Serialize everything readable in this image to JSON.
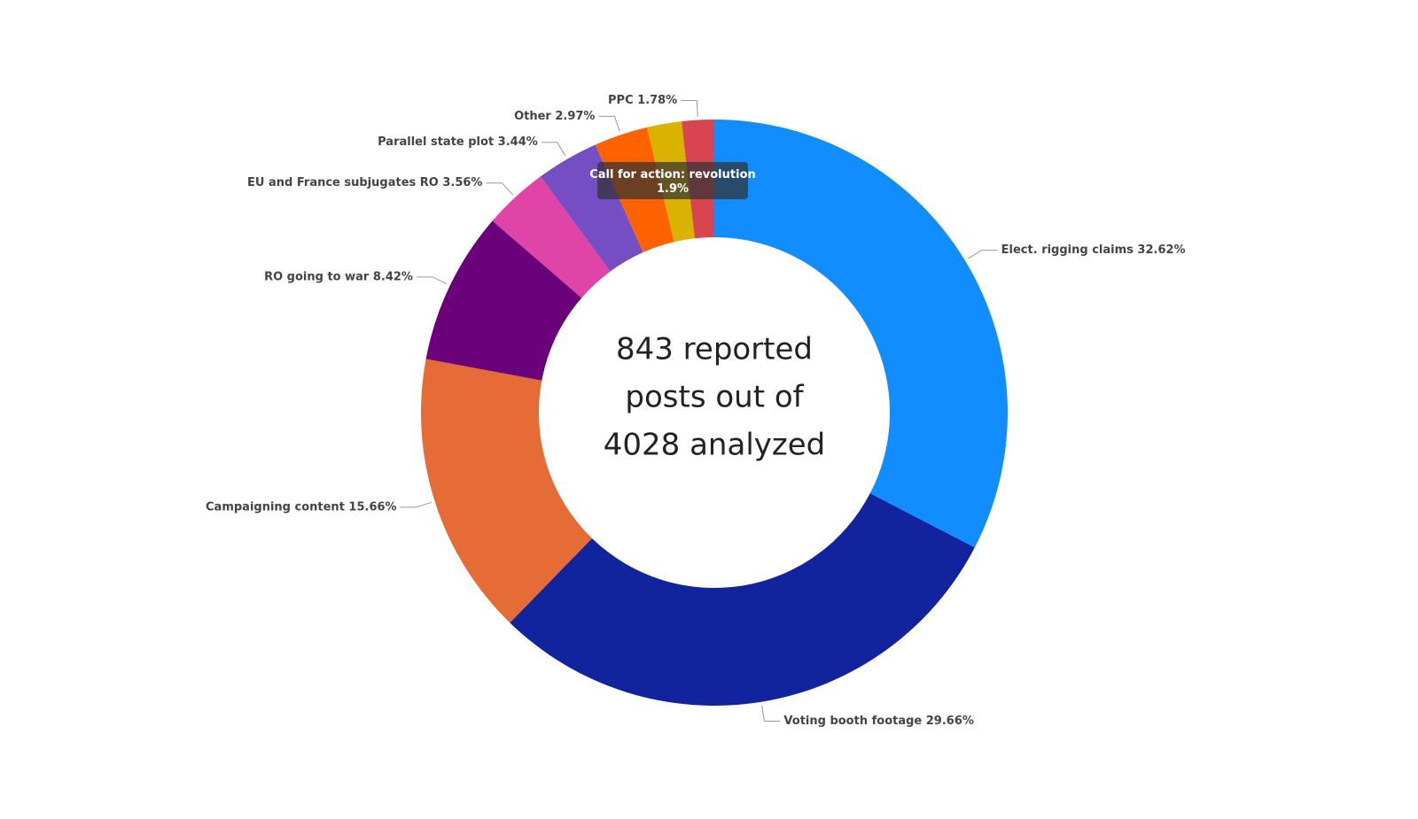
{
  "chart_data": {
    "type": "pie",
    "donut": true,
    "center_lines": [
      "843 reported",
      "posts out of",
      "4028 analyzed"
    ],
    "slices": [
      {
        "name": "Elect. rigging claims",
        "value": 32.62,
        "value_label": "32.62%",
        "color": "#118DFF"
      },
      {
        "name": "Voting booth footage",
        "value": 29.66,
        "value_label": "29.66%",
        "color": "#12239E"
      },
      {
        "name": "Campaigning content",
        "value": 15.66,
        "value_label": "15.66%",
        "color": "#E66C37"
      },
      {
        "name": "RO going to war",
        "value": 8.42,
        "value_label": "8.42%",
        "color": "#6B007B"
      },
      {
        "name": "EU and France subjugates RO",
        "value": 3.56,
        "value_label": "3.56%",
        "color": "#E044A7"
      },
      {
        "name": "Parallel state plot",
        "value": 3.44,
        "value_label": "3.44%",
        "color": "#744EC2"
      },
      {
        "name": "Other",
        "value": 2.97,
        "value_label": "2.97%",
        "color": "#FF6300"
      },
      {
        "name": "Call for action: revolution",
        "value": 1.9,
        "value_label": "1.9%",
        "color": "#D9B300"
      },
      {
        "name": "PPC",
        "value": 1.78,
        "value_label": "1.78%",
        "color": "#D64550"
      }
    ],
    "tooltip": {
      "slice": "Call for action: revolution",
      "line1": "Call for action: revolution",
      "line2": "1.9%"
    }
  }
}
